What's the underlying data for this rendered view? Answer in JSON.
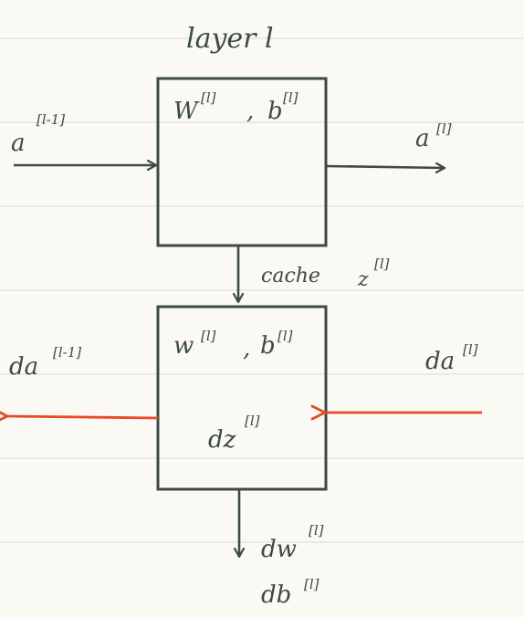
{
  "colors": {
    "paper": "#fbf9f4",
    "rule_line": "#d8d9d8",
    "ink": "#3c4a47",
    "backward_arrow": "#e84a25"
  },
  "forward": {
    "title": "layer l",
    "params": {
      "w": "W",
      "w_sup": "[l]",
      "sep": ",",
      "b": "b",
      "b_sup": "[l]"
    },
    "input": {
      "base": "a",
      "sup": "[l-1]"
    },
    "output": {
      "base": "a",
      "sup": "[l]"
    },
    "cache": {
      "word": "cache",
      "var": "z",
      "sup": "[l]"
    }
  },
  "backward": {
    "params": {
      "w": "w",
      "w_sup": "[l]",
      "sep": ",",
      "b": "b",
      "b_sup": "[l]"
    },
    "dz": {
      "base": "dz",
      "sup": "[l]"
    },
    "input": {
      "base": "da",
      "sup": "[l]"
    },
    "output": {
      "base": "da",
      "sup": "[l-1]"
    },
    "grad_w": {
      "base": "dw",
      "sup": "[l]"
    },
    "grad_b": {
      "base": "db",
      "sup": "[l]"
    }
  }
}
